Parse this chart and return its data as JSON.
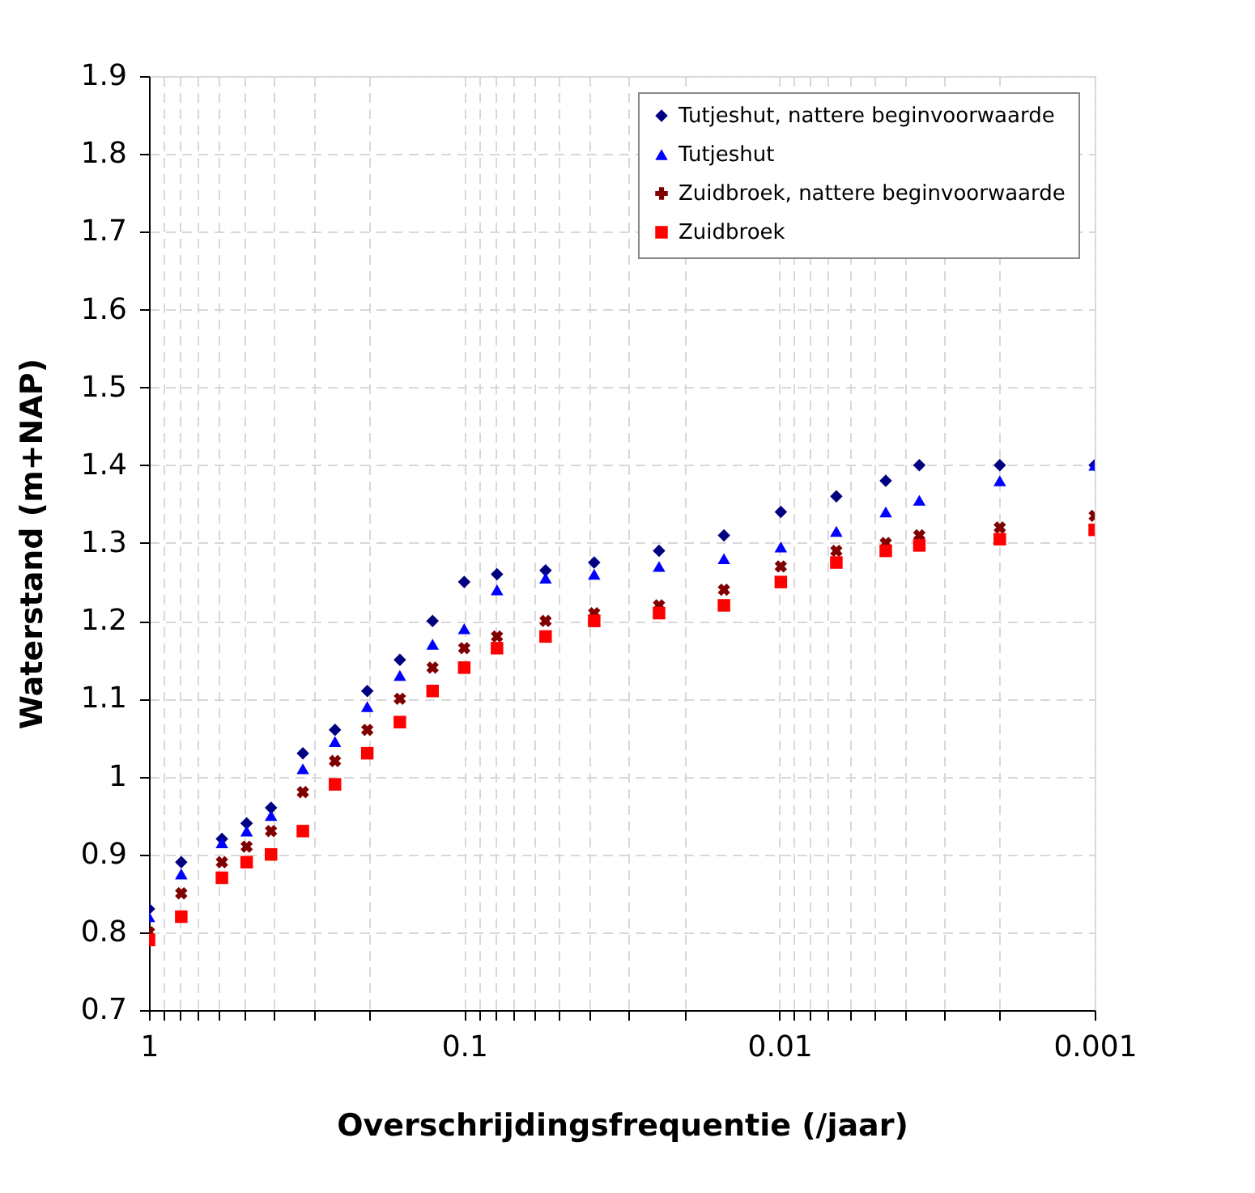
{
  "chart_data": {
    "type": "scatter",
    "xlabel": "Overschrijdingsfrequentie (/jaar)",
    "ylabel": "Waterstand (m+NAP)",
    "xlim": [
      1,
      0.001
    ],
    "ylim": [
      0.7,
      1.9
    ],
    "xticks": [
      1,
      {
        "value": 0.9,
        "label": null
      },
      {
        "value": 0.8,
        "label": null
      },
      {
        "value": 0.7,
        "label": null
      },
      {
        "value": 0.6,
        "label": null
      },
      {
        "value": 0.5,
        "label": null
      },
      {
        "value": 0.4,
        "label": null
      },
      {
        "value": 0.3,
        "label": null
      },
      {
        "value": 0.2,
        "label": null
      },
      0.1,
      {
        "value": 0.09,
        "label": null
      },
      {
        "value": 0.08,
        "label": null
      },
      {
        "value": 0.07,
        "label": null
      },
      {
        "value": 0.06,
        "label": null
      },
      {
        "value": 0.05,
        "label": null
      },
      {
        "value": 0.04,
        "label": null
      },
      {
        "value": 0.03,
        "label": null
      },
      {
        "value": 0.02,
        "label": null
      },
      0.01,
      {
        "value": 0.009,
        "label": null
      },
      {
        "value": 0.008,
        "label": null
      },
      {
        "value": 0.007,
        "label": null
      },
      {
        "value": 0.006,
        "label": null
      },
      {
        "value": 0.005,
        "label": null
      },
      {
        "value": 0.004,
        "label": null
      },
      {
        "value": 0.003,
        "label": null
      },
      {
        "value": 0.002,
        "label": null
      },
      0.001
    ],
    "yticks": [
      0.7,
      0.8,
      0.9,
      1,
      1.1,
      1.2,
      1.3,
      1.4,
      1.5,
      1.6,
      1.7,
      1.8,
      1.9
    ],
    "log": "x",
    "grid": true,
    "legend": "top right",
    "x": [
      1,
      0.79,
      0.587,
      0.49,
      0.41,
      0.325,
      0.257,
      0.203,
      0.16,
      0.126,
      0.1,
      0.0787,
      0.0552,
      0.0387,
      0.0241,
      0.015,
      0.0099,
      0.0066,
      0.0046,
      0.0036,
      0.002,
      0.001
    ],
    "series": [
      {
        "name": "Tutjeshut, nattere beginvoorwaarde",
        "color": "#000080",
        "marker": "diamond",
        "values": [
          0.83,
          0.89,
          0.92,
          0.94,
          0.96,
          1.03,
          1.06,
          1.11,
          1.15,
          1.2,
          1.25,
          1.26,
          1.265,
          1.275,
          1.29,
          1.31,
          1.34,
          1.36,
          1.38,
          1.4,
          1.4,
          1.4
        ]
      },
      {
        "name": "Tutjeshut",
        "color": "#0000ff",
        "marker": "triangle",
        "values": [
          0.82,
          0.875,
          0.915,
          0.93,
          0.95,
          1.01,
          1.045,
          1.09,
          1.13,
          1.17,
          1.19,
          1.24,
          1.255,
          1.26,
          1.27,
          1.28,
          1.295,
          1.315,
          1.34,
          1.355,
          1.38,
          1.4
        ]
      },
      {
        "name": "Zuidbroek, nattere beginvoorwaarde",
        "color": "#800000",
        "marker": "cross",
        "values": [
          0.8,
          0.85,
          0.89,
          0.91,
          0.93,
          0.98,
          1.02,
          1.06,
          1.1,
          1.14,
          1.165,
          1.18,
          1.2,
          1.21,
          1.22,
          1.24,
          1.27,
          1.29,
          1.3,
          1.31,
          1.32,
          1.335
        ]
      },
      {
        "name": "Zuidbroek",
        "color": "#ff0000",
        "marker": "square",
        "values": [
          0.79,
          0.82,
          0.87,
          0.89,
          0.9,
          0.93,
          0.99,
          1.03,
          1.07,
          1.11,
          1.14,
          1.165,
          1.18,
          1.2,
          1.21,
          1.22,
          1.25,
          1.275,
          1.29,
          1.297,
          1.305,
          1.317
        ]
      }
    ]
  }
}
